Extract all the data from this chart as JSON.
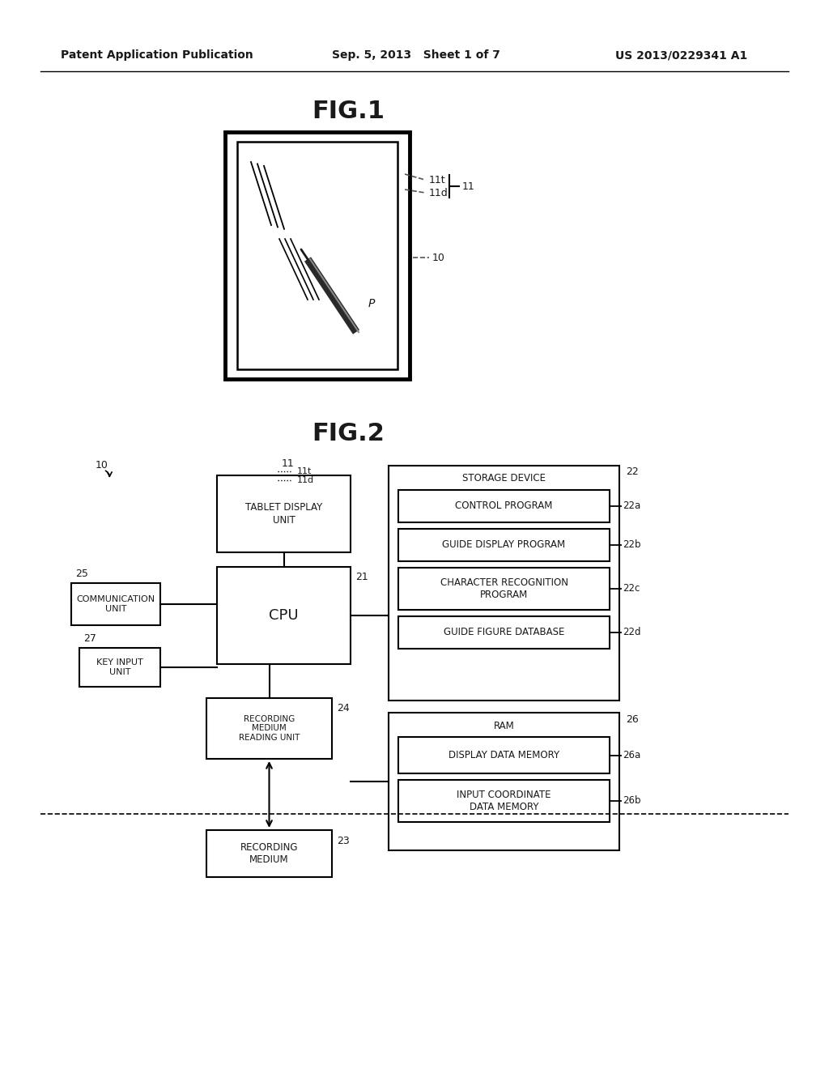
{
  "bg_color": "#ffffff",
  "header_left": "Patent Application Publication",
  "header_mid": "Sep. 5, 2013   Sheet 1 of 7",
  "header_right": "US 2013/0229341 A1",
  "fig1_title": "FIG.1",
  "fig2_title": "FIG.2",
  "box_tablet": "TABLET DISPLAY\nUNIT",
  "box_cpu": "CPU",
  "box_storage": "STORAGE DEVICE",
  "box_control": "CONTROL PROGRAM",
  "box_guide_display": "GUIDE DISPLAY PROGRAM",
  "box_char_recog": "CHARACTER RECOGNITION\nPROGRAM",
  "box_guide_fig": "GUIDE FIGURE DATABASE",
  "box_ram": "RAM",
  "box_display_mem": "DISPLAY DATA MEMORY",
  "box_input_coord": "INPUT COORDINATE\nDATA MEMORY",
  "box_comm": "COMMUNICATION\nUNIT",
  "box_key": "KEY INPUT\nUNIT",
  "box_record_read": "RECORDING\nMEDIUM\nREADING UNIT",
  "box_record_med": "RECORDING\nMEDIUM",
  "line_color": "#000000",
  "text_color": "#1a1a1a"
}
